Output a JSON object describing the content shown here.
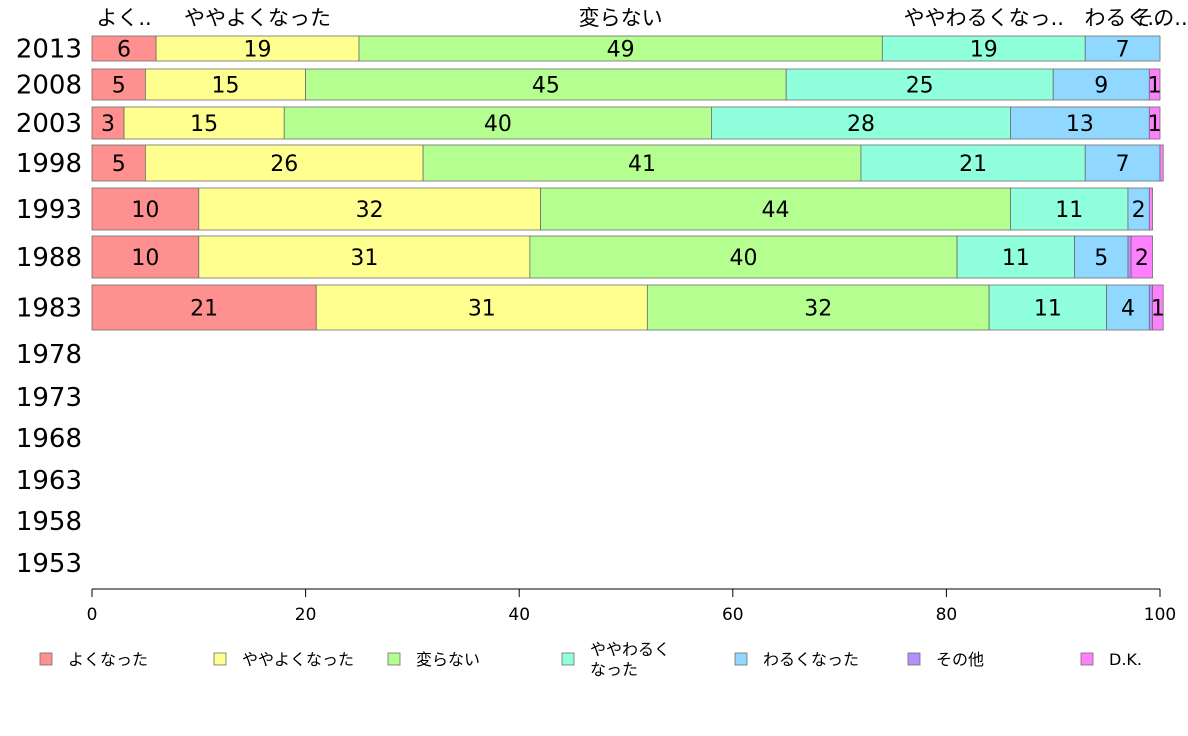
{
  "chart_data": {
    "type": "bar",
    "orientation": "horizontal",
    "stacked": true,
    "categories": [
      "2013",
      "2008",
      "2003",
      "1998",
      "1993",
      "1988",
      "1983",
      "1978",
      "1973",
      "1968",
      "1963",
      "1958",
      "1953"
    ],
    "series": [
      {
        "name": "よくなった",
        "short_label": "よく..",
        "color": "#ff9090",
        "values": [
          6,
          5,
          3,
          5,
          10,
          10,
          21,
          null,
          null,
          null,
          null,
          null,
          null
        ]
      },
      {
        "name": "ややよくなった",
        "short_label": "ややよくなった",
        "color": "#ffff90",
        "values": [
          19,
          15,
          15,
          26,
          32,
          31,
          31,
          null,
          null,
          null,
          null,
          null,
          null
        ]
      },
      {
        "name": "変らない",
        "short_label": "変らない",
        "color": "#b4ff90",
        "values": [
          49,
          45,
          40,
          41,
          44,
          40,
          32,
          null,
          null,
          null,
          null,
          null,
          null
        ]
      },
      {
        "name": "ややわるくなった",
        "legend_lines": [
          "ややわるく",
          "なった"
        ],
        "short_label": "ややわるくなっ..",
        "color": "#90ffdc",
        "values": [
          19,
          25,
          28,
          21,
          11,
          11,
          11,
          null,
          null,
          null,
          null,
          null,
          null
        ]
      },
      {
        "name": "わるくなった",
        "short_label": "わるく..",
        "color": "#90d8ff",
        "values": [
          7,
          9,
          13,
          7,
          2,
          5,
          4,
          null,
          null,
          null,
          null,
          null,
          null
        ]
      },
      {
        "name": "その他",
        "short_label": "その..",
        "color": "#b490ff",
        "values": [
          0,
          0,
          0,
          0,
          0,
          0.3,
          0.3,
          null,
          null,
          null,
          null,
          null,
          null
        ]
      },
      {
        "name": "D.K.",
        "color": "#ff80ff",
        "values": [
          0,
          1,
          1,
          0.3,
          0.3,
          2,
          1,
          null,
          null,
          null,
          null,
          null,
          null
        ]
      }
    ],
    "segment_labels": [
      [
        "6",
        "19",
        "49",
        "19",
        "7",
        "",
        ""
      ],
      [
        "5",
        "15",
        "45",
        "25",
        "9",
        "",
        "1"
      ],
      [
        "3",
        "15",
        "40",
        "28",
        "13",
        "",
        "1"
      ],
      [
        "5",
        "26",
        "41",
        "21",
        "7",
        "",
        ""
      ],
      [
        "10",
        "32",
        "44",
        "11",
        "2",
        "",
        ""
      ],
      [
        "10",
        "31",
        "40",
        "11",
        "5",
        "",
        "2"
      ],
      [
        "21",
        "31",
        "32",
        "11",
        "4",
        "",
        "1"
      ]
    ],
    "xlim": [
      0,
      100
    ],
    "xticks": [
      "0",
      "20",
      "40",
      "60",
      "80",
      "100"
    ],
    "legend_position": "bottom",
    "grid": false
  }
}
